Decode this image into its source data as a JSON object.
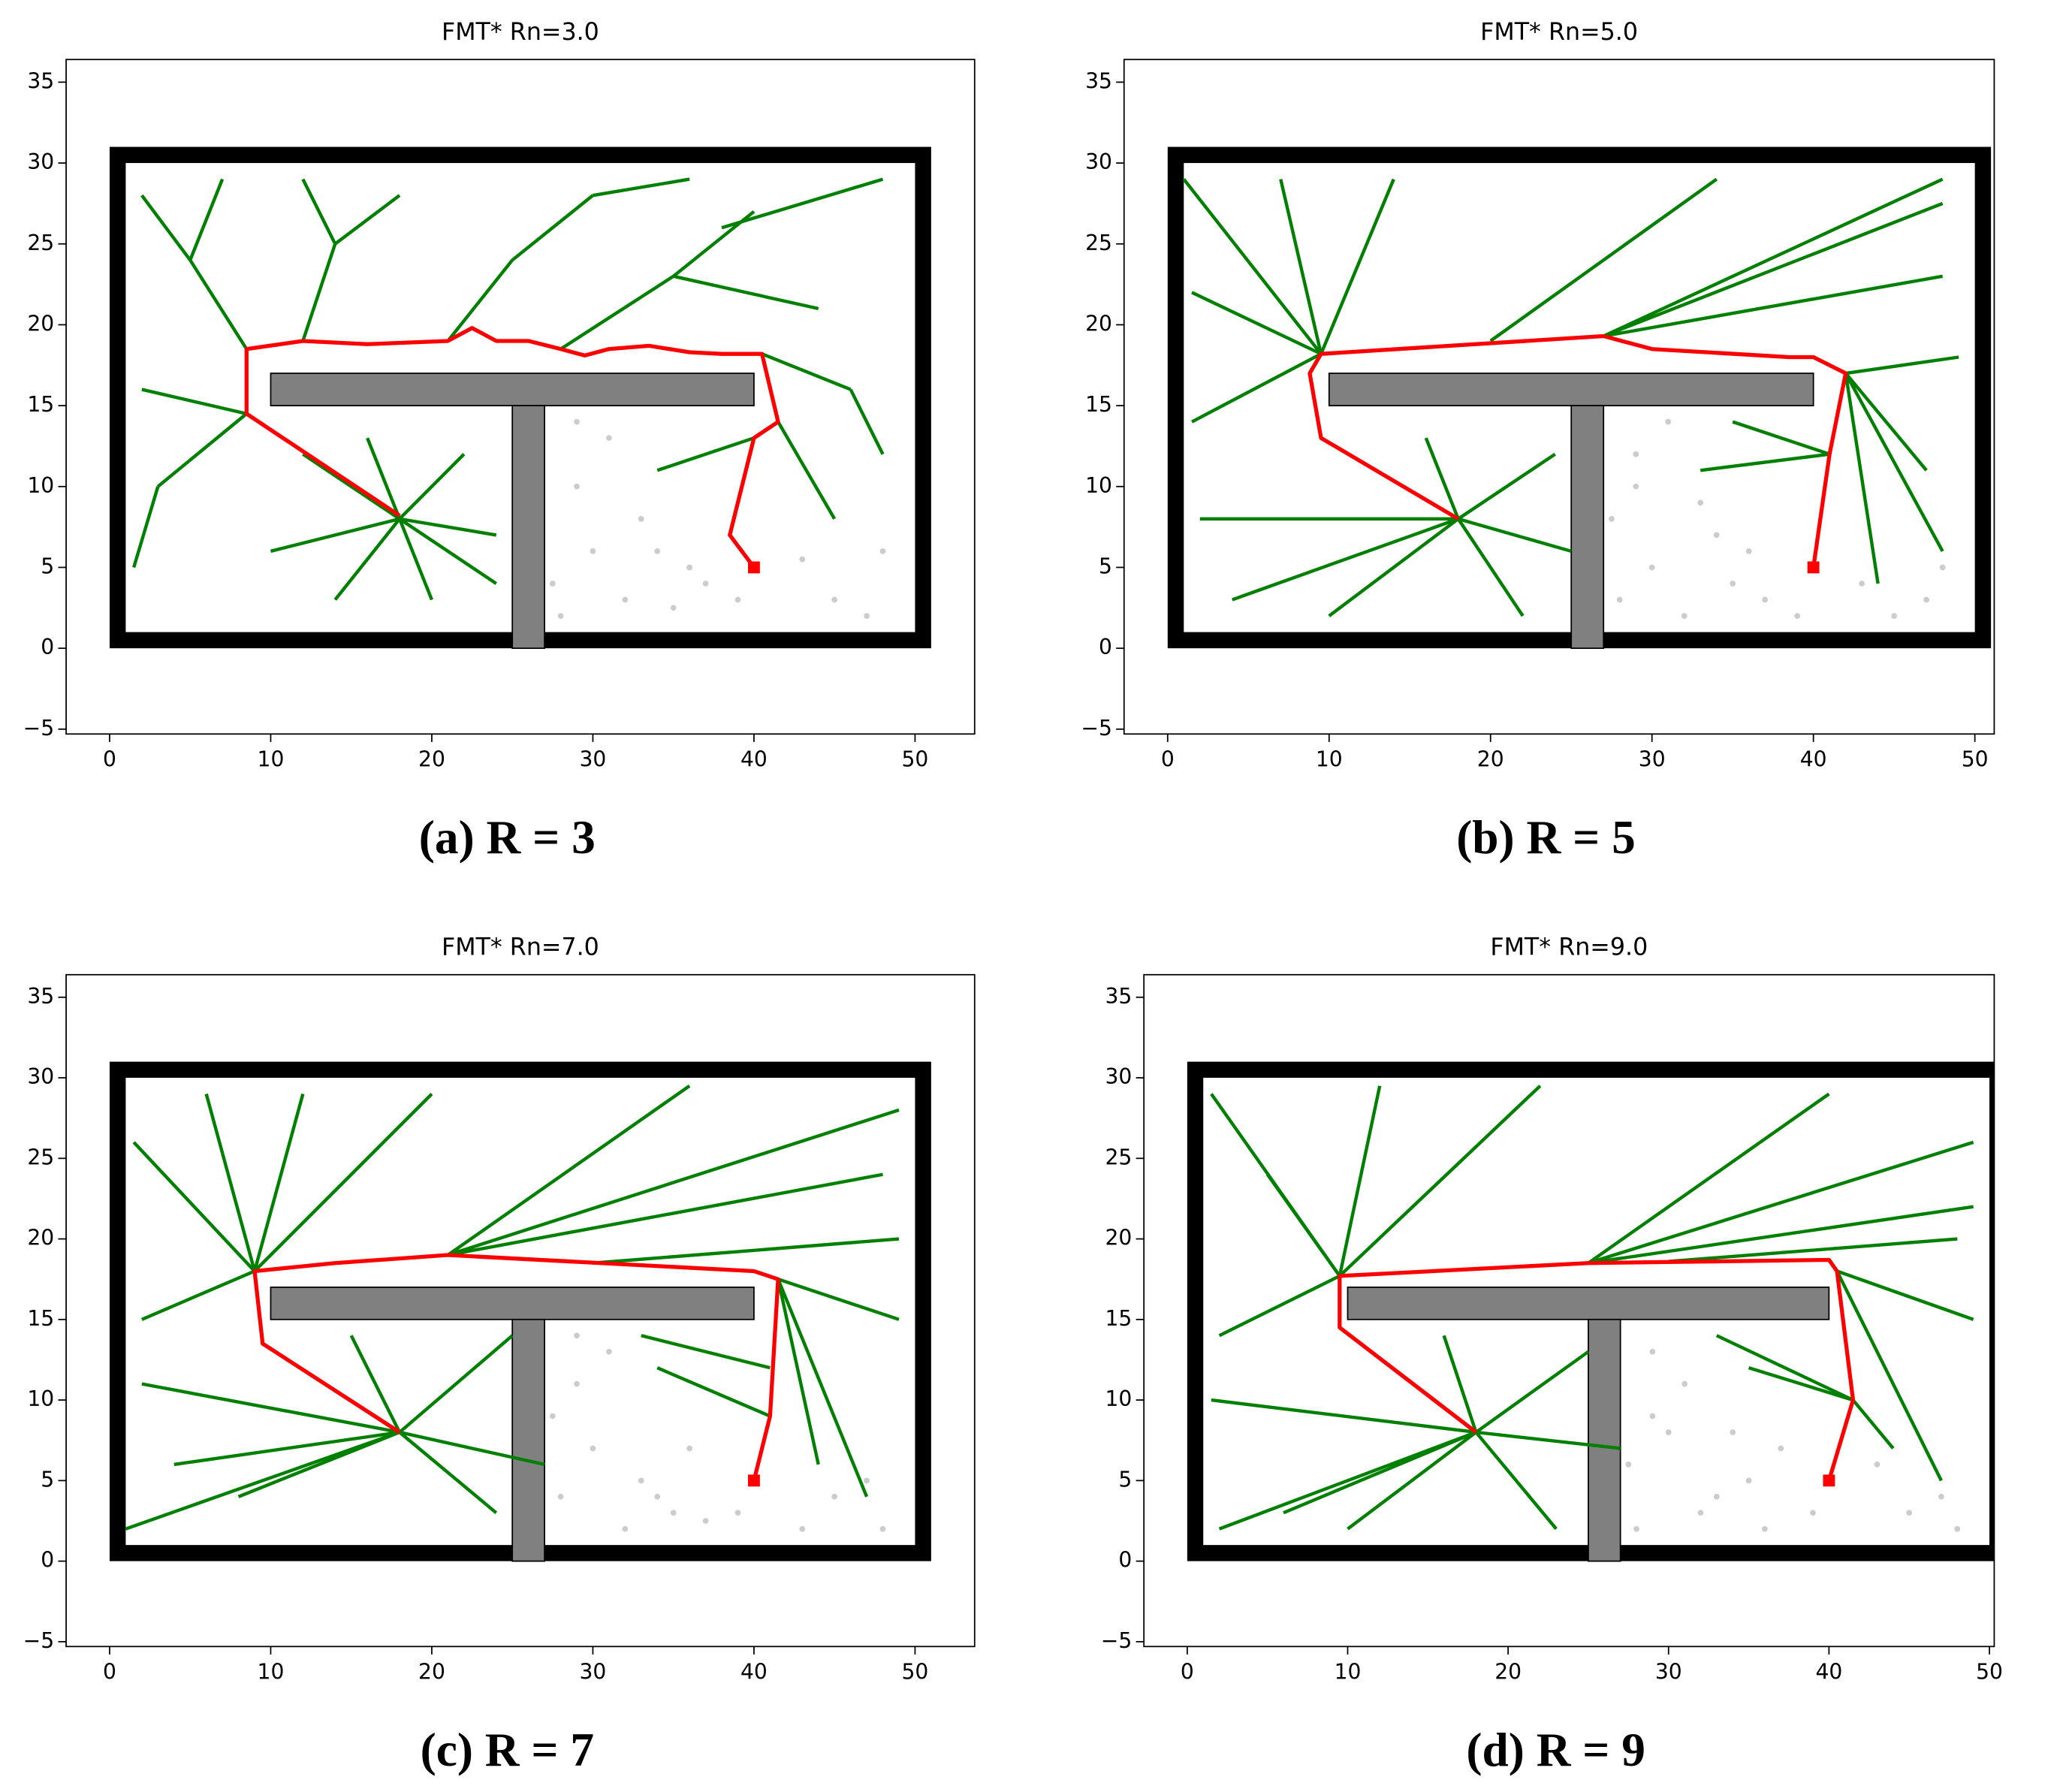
{
  "chart_data": [
    {
      "type": "line",
      "title": "FMT* Rn=3.0",
      "caption": "(a) R = 3",
      "xlim": [
        -2.7,
        53.7
      ],
      "ylim": [
        -5.3,
        36.4
      ],
      "xticks": [
        0,
        10,
        20,
        30,
        40,
        50
      ],
      "yticks": [
        {
          "value": -5,
          "label": "−5"
        },
        0,
        5,
        10,
        15,
        20,
        25,
        30,
        35
      ],
      "obstacles": [
        {
          "x": 0,
          "y": 0,
          "width": 51,
          "height": 31,
          "color": "#000000"
        },
        {
          "x": 1,
          "y": 1,
          "width": 49,
          "height": 29,
          "color": "#ffffff"
        },
        {
          "x": 10,
          "y": 15,
          "width": 30,
          "height": 2,
          "color": "#808080"
        },
        {
          "x": 25,
          "y": 0,
          "width": 2,
          "height": 15,
          "color": "#808080"
        }
      ],
      "series": [
        {
          "style": "points",
          "color": "#cccccc",
          "x": [
            28,
            30,
            32,
            35,
            29,
            33,
            37,
            45,
            48,
            31,
            27.5,
            36,
            47,
            43,
            39,
            29,
            34
          ],
          "y": [
            2,
            6,
            3,
            2.5,
            10,
            8,
            4,
            3,
            6,
            13,
            4,
            5,
            2,
            5.5,
            3,
            14,
            6
          ]
        },
        {
          "style": "line",
          "color": "#008000",
          "x": [
            18,
            12,
            null,
            18,
            10,
            null,
            18,
            14,
            null,
            18,
            22,
            null,
            18,
            24,
            null,
            18,
            20,
            null,
            18,
            16,
            null,
            18,
            24,
            null,
            8.5,
            5,
            null,
            5,
            2,
            null,
            5,
            7,
            null,
            12,
            14,
            null,
            14,
            12,
            null,
            14,
            18,
            null,
            21,
            25,
            null,
            25,
            30,
            null,
            28,
            35,
            null,
            35,
            40,
            null,
            35,
            44,
            null,
            40.5,
            46,
            null,
            46,
            48,
            null,
            41.5,
            45,
            null,
            40,
            34,
            null,
            8.5,
            2,
            null,
            8.5,
            3,
            null,
            3,
            1.5,
            null,
            38,
            48,
            null,
            30,
            36
          ],
          "y": [
            8,
            12,
            null,
            8,
            6,
            null,
            8,
            3,
            null,
            8,
            12,
            null,
            8,
            7,
            null,
            8,
            3,
            null,
            8,
            13,
            null,
            8,
            4,
            null,
            18.5,
            24,
            null,
            24,
            28,
            null,
            24,
            29,
            null,
            19,
            25,
            null,
            25,
            29,
            null,
            25,
            28,
            null,
            19,
            24,
            null,
            24,
            28,
            null,
            18.5,
            23,
            null,
            23,
            27,
            null,
            23,
            21,
            null,
            18.2,
            16,
            null,
            16,
            12,
            null,
            14,
            8,
            null,
            13,
            11,
            null,
            14.5,
            16,
            null,
            14.5,
            10,
            null,
            10,
            5,
            null,
            26,
            29,
            null,
            28,
            29
          ]
        },
        {
          "style": "line",
          "color": "#ff0000",
          "x": [
            18,
            8.5,
            8.5,
            12,
            16,
            21,
            22.5,
            24,
            26,
            28,
            29.5,
            31,
            33.5,
            36,
            38,
            40.5,
            41.5,
            40,
            38.5,
            40
          ],
          "y": [
            8.2,
            14.5,
            18.5,
            19,
            18.8,
            19,
            19.8,
            19,
            19,
            18.5,
            18.1,
            18.5,
            18.7,
            18.3,
            18.2,
            18.2,
            14,
            13,
            7,
            5
          ]
        },
        {
          "style": "square",
          "color": "#ff0000",
          "x": [
            40
          ],
          "y": [
            5
          ]
        }
      ]
    },
    {
      "type": "line",
      "title": "FMT* Rn=5.0",
      "caption": "(b) R = 5",
      "xlim": [
        -2.7,
        51.2
      ],
      "ylim": [
        -5.3,
        36.4
      ],
      "xticks": [
        0,
        10,
        20,
        30,
        40,
        50
      ],
      "yticks": [
        {
          "value": -5,
          "label": "−5"
        },
        0,
        5,
        10,
        15,
        20,
        25,
        30,
        35
      ],
      "obstacles": [
        {
          "x": 0,
          "y": 0,
          "width": 51,
          "height": 31,
          "color": "#000000"
        },
        {
          "x": 1,
          "y": 1,
          "width": 49,
          "height": 29,
          "color": "#ffffff"
        },
        {
          "x": 10,
          "y": 15,
          "width": 30,
          "height": 2,
          "color": "#808080"
        },
        {
          "x": 25,
          "y": 0,
          "width": 2,
          "height": 15,
          "color": "#808080"
        }
      ],
      "series": [
        {
          "style": "points",
          "color": "#cccccc",
          "x": [
            28,
            30,
            32,
            35,
            29,
            33,
            37,
            45,
            48,
            31,
            27.5,
            36,
            47,
            43,
            39,
            29,
            34
          ],
          "y": [
            3,
            5,
            2,
            4,
            12,
            9,
            3,
            2,
            5,
            14,
            8,
            6,
            3,
            4,
            2,
            10,
            7
          ]
        },
        {
          "style": "line",
          "color": "#008000",
          "x": [
            18,
            2,
            null,
            18,
            4,
            null,
            18,
            10,
            null,
            18,
            24,
            null,
            18,
            22,
            null,
            18,
            16,
            null,
            18,
            25,
            null,
            9.5,
            1,
            null,
            9.5,
            1.5,
            null,
            9.5,
            1.5,
            null,
            9.5,
            7,
            null,
            9.5,
            14,
            null,
            27,
            48,
            null,
            27,
            48,
            null,
            27,
            48,
            null,
            20,
            34,
            null,
            42,
            49,
            null,
            42,
            48,
            null,
            42,
            44,
            null,
            41,
            33,
            null,
            41,
            35,
            null,
            42,
            47
          ],
          "y": [
            8,
            8,
            null,
            8,
            3,
            null,
            8,
            2,
            null,
            8,
            12,
            null,
            8,
            2,
            null,
            8,
            13,
            null,
            8,
            6,
            null,
            18.2,
            29,
            null,
            18.2,
            22,
            null,
            18.2,
            14,
            null,
            18.2,
            29,
            null,
            18.2,
            29,
            null,
            19.3,
            29,
            null,
            19.3,
            27.5,
            null,
            19.3,
            23,
            null,
            19,
            29,
            null,
            17,
            18,
            null,
            17,
            6,
            null,
            17,
            4,
            null,
            12,
            11,
            null,
            12,
            14,
            null,
            17,
            11
          ]
        },
        {
          "style": "line",
          "color": "#ff0000",
          "x": [
            18,
            9.5,
            8.8,
            9.5,
            27,
            30,
            38.5,
            40,
            42,
            41,
            40
          ],
          "y": [
            8,
            13,
            17,
            18.2,
            19.3,
            18.5,
            18,
            18,
            17,
            12,
            5
          ]
        },
        {
          "style": "square",
          "color": "#ff0000",
          "x": [
            40
          ],
          "y": [
            5
          ]
        }
      ]
    },
    {
      "type": "line",
      "title": "FMT* Rn=7.0",
      "caption": "(c) R = 7",
      "xlim": [
        -2.7,
        53.7
      ],
      "ylim": [
        -5.3,
        36.4
      ],
      "xticks": [
        0,
        10,
        20,
        30,
        40,
        50
      ],
      "yticks": [
        {
          "value": -5,
          "label": "−5"
        },
        0,
        5,
        10,
        15,
        20,
        25,
        30,
        35
      ],
      "obstacles": [
        {
          "x": 0,
          "y": 0,
          "width": 51,
          "height": 31,
          "color": "#000000"
        },
        {
          "x": 1,
          "y": 1,
          "width": 49,
          "height": 29,
          "color": "#ffffff"
        },
        {
          "x": 10,
          "y": 15,
          "width": 30,
          "height": 2,
          "color": "#808080"
        },
        {
          "x": 25,
          "y": 0,
          "width": 2,
          "height": 15,
          "color": "#808080"
        }
      ],
      "series": [
        {
          "style": "points",
          "color": "#cccccc",
          "x": [
            28,
            30,
            32,
            35,
            29,
            33,
            37,
            45,
            48,
            31,
            27.5,
            36,
            47,
            43,
            39,
            29,
            34
          ],
          "y": [
            4,
            7,
            2,
            3,
            11,
            5,
            2.5,
            4,
            2,
            13,
            9,
            7,
            5,
            2,
            3,
            14,
            4
          ]
        },
        {
          "style": "line",
          "color": "#008000",
          "x": [
            18,
            1,
            null,
            18,
            2,
            null,
            18,
            8,
            null,
            18,
            25,
            null,
            18,
            24,
            null,
            18,
            15,
            null,
            18,
            27,
            null,
            18,
            4,
            null,
            9,
            1.5,
            null,
            9,
            2,
            null,
            9,
            6,
            null,
            9,
            12,
            null,
            9,
            20,
            null,
            21,
            36,
            null,
            21,
            49,
            null,
            21,
            48,
            null,
            30,
            49,
            null,
            41.5,
            49,
            null,
            41.5,
            47,
            null,
            41.5,
            44,
            null,
            41,
            34,
            null,
            41,
            33
          ],
          "y": [
            8,
            2,
            null,
            8,
            11,
            null,
            8,
            4,
            null,
            8,
            14,
            null,
            8,
            3,
            null,
            8,
            14,
            null,
            8,
            6,
            null,
            8,
            6,
            null,
            18,
            26,
            null,
            18,
            15,
            null,
            18,
            29,
            null,
            18,
            29,
            null,
            18,
            29,
            null,
            19,
            29.5,
            null,
            19,
            28,
            null,
            19,
            24,
            null,
            18.5,
            20,
            null,
            17.5,
            15,
            null,
            17.5,
            4,
            null,
            17.5,
            6,
            null,
            9,
            12,
            null,
            12,
            14
          ]
        },
        {
          "style": "line",
          "color": "#ff0000",
          "x": [
            18,
            9.5,
            9,
            14,
            21,
            40,
            41.5,
            41,
            40
          ],
          "y": [
            8,
            13.5,
            18,
            18.5,
            19,
            18,
            17.5,
            9,
            5
          ]
        },
        {
          "style": "square",
          "color": "#ff0000",
          "x": [
            40
          ],
          "y": [
            5
          ]
        }
      ]
    },
    {
      "type": "line",
      "title": "FMT* Rn=9.0",
      "caption": "(d) R = 9",
      "xlim": [
        -2.7,
        50.3
      ],
      "ylim": [
        -5.3,
        36.4
      ],
      "xticks": [
        0,
        10,
        20,
        30,
        40,
        50
      ],
      "yticks": [
        {
          "value": -5,
          "label": "−5"
        },
        0,
        5,
        10,
        15,
        20,
        25,
        30,
        35
      ],
      "obstacles": [
        {
          "x": 0,
          "y": 0,
          "width": 51,
          "height": 31,
          "color": "#000000"
        },
        {
          "x": 1,
          "y": 1,
          "width": 49,
          "height": 29,
          "color": "#ffffff"
        },
        {
          "x": 10,
          "y": 15,
          "width": 30,
          "height": 2,
          "color": "#808080"
        },
        {
          "x": 25,
          "y": 0,
          "width": 2,
          "height": 15,
          "color": "#808080"
        }
      ],
      "series": [
        {
          "style": "points",
          "color": "#cccccc",
          "x": [
            28,
            30,
            32,
            35,
            29,
            33,
            37,
            45,
            48,
            31,
            27.5,
            36,
            47,
            43,
            39,
            29,
            34
          ],
          "y": [
            2,
            8,
            3,
            5,
            13,
            4,
            7,
            3,
            2,
            11,
            6,
            2,
            4,
            6,
            3,
            9,
            8
          ]
        },
        {
          "style": "line",
          "color": "#008000",
          "x": [
            18,
            2,
            null,
            18,
            1.5,
            null,
            18,
            6,
            null,
            18,
            25,
            null,
            18,
            23,
            null,
            18,
            16,
            null,
            18,
            27,
            null,
            18,
            10,
            null,
            9.5,
            1.5,
            null,
            9.5,
            2,
            null,
            9.5,
            5,
            null,
            9.5,
            12,
            null,
            9.5,
            22,
            null,
            25,
            40,
            null,
            25,
            49,
            null,
            25,
            49,
            null,
            30,
            48,
            null,
            40.5,
            49,
            null,
            40.5,
            47,
            null,
            41.5,
            44,
            null,
            41.5,
            33,
            null,
            41.5,
            35
          ],
          "y": [
            8,
            2,
            null,
            8,
            10,
            null,
            8,
            3,
            null,
            8,
            13,
            null,
            8,
            2,
            null,
            8,
            14,
            null,
            8,
            7,
            null,
            8,
            2,
            null,
            17.7,
            29,
            null,
            17.7,
            14,
            null,
            17.7,
            24,
            null,
            17.7,
            29.5,
            null,
            17.7,
            29.5,
            null,
            18.5,
            29,
            null,
            18.5,
            26,
            null,
            18.5,
            22,
            null,
            18.6,
            20,
            null,
            18,
            15,
            null,
            18,
            5,
            null,
            10,
            7,
            null,
            10,
            14,
            null,
            10,
            12
          ]
        },
        {
          "style": "line",
          "color": "#ff0000",
          "x": [
            18,
            9.5,
            9.5,
            25,
            40,
            40.5,
            41.5,
            40
          ],
          "y": [
            8,
            14.5,
            17.7,
            18.5,
            18.7,
            18,
            10,
            5
          ]
        },
        {
          "style": "square",
          "color": "#ff0000",
          "x": [
            40
          ],
          "y": [
            5
          ]
        }
      ]
    }
  ]
}
